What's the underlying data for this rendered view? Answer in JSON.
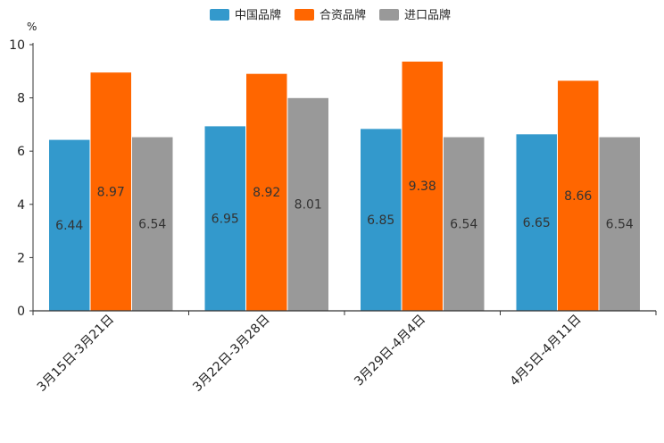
{
  "chart_data": {
    "type": "bar",
    "unit": "%",
    "categories": [
      "3月15日-3月21日",
      "3月22日-3月28日",
      "3月29日-4月4日",
      "4月5日-4月11日"
    ],
    "series": [
      {
        "name": "中国品牌",
        "color": "#3399cc",
        "values": [
          6.44,
          6.95,
          6.85,
          6.65
        ],
        "labels": [
          "6.44",
          "6.95",
          "6.85",
          "6.65"
        ]
      },
      {
        "name": "合资品牌",
        "color": "#ff6600",
        "values": [
          8.97,
          8.92,
          9.38,
          8.66
        ],
        "labels": [
          "8.97",
          "8.92",
          "9.38",
          "8.66"
        ]
      },
      {
        "name": "进口品牌",
        "color": "#999999",
        "values": [
          6.54,
          8.01,
          6.54,
          6.54
        ],
        "labels": [
          "6.54",
          "8.01",
          "6.54",
          "6.54"
        ]
      }
    ],
    "ylim": [
      0,
      10
    ],
    "yticks": [
      "0",
      "2",
      "4",
      "6",
      "8",
      "10"
    ],
    "legend_position": "top-center",
    "grid": false
  }
}
